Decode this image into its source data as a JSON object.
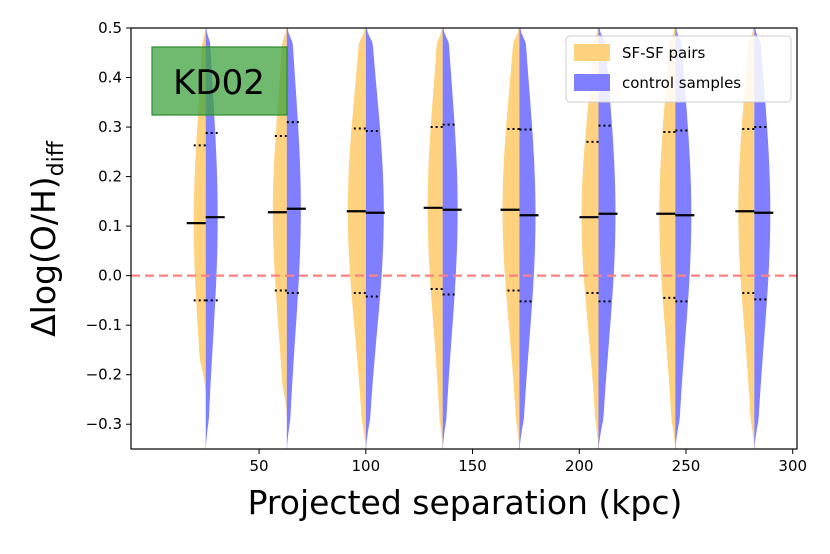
{
  "chart_data": {
    "type": "violin",
    "xlabel": "Projected separation (kpc)",
    "ylabel_main": "Δlog(O/H)",
    "ylabel_sub": "diff",
    "annotation": "KD02",
    "xlim": [
      -10,
      302
    ],
    "ylim": [
      -0.35,
      0.5
    ],
    "xticks": [
      50,
      100,
      150,
      200,
      250,
      300
    ],
    "yticks": [
      -0.3,
      -0.2,
      -0.1,
      0.0,
      0.1,
      0.2,
      0.3,
      0.4,
      0.5
    ],
    "xtick_labels": [
      "50",
      "100",
      "150",
      "200",
      "250",
      "300"
    ],
    "ytick_labels": [
      "−0.3",
      "−0.2",
      "−0.1",
      "0.0",
      "0.1",
      "0.2",
      "0.3",
      "0.4",
      "0.5"
    ],
    "reference_line": {
      "y": 0.0,
      "color": "#ff8080",
      "style": "dashed"
    },
    "series": [
      {
        "name": "SF-SF pairs",
        "color": "#ffd27f",
        "side": "left"
      },
      {
        "name": "control samples",
        "color": "#7f7fff",
        "side": "right"
      }
    ],
    "legend_position": "top-right",
    "groups": [
      {
        "x": 25,
        "sfsf": {
          "median": 0.106,
          "q_low": -0.05,
          "q_high": 0.263,
          "ymin": -0.23,
          "ymax": 0.5,
          "width": 12
        },
        "control": {
          "median": 0.118,
          "q_low": -0.05,
          "q_high": 0.288,
          "ymin": -0.35,
          "ymax": 0.5,
          "width": 12
        }
      },
      {
        "x": 63,
        "sfsf": {
          "median": 0.128,
          "q_low": -0.03,
          "q_high": 0.282,
          "ymin": -0.28,
          "ymax": 0.5,
          "width": 14
        },
        "control": {
          "median": 0.135,
          "q_low": -0.035,
          "q_high": 0.31,
          "ymin": -0.35,
          "ymax": 0.5,
          "width": 14
        }
      },
      {
        "x": 100,
        "sfsf": {
          "median": 0.13,
          "q_low": -0.035,
          "q_high": 0.297,
          "ymin": -0.35,
          "ymax": 0.5,
          "width": 18
        },
        "control": {
          "median": 0.127,
          "q_low": -0.042,
          "q_high": 0.292,
          "ymin": -0.35,
          "ymax": 0.5,
          "width": 18
        }
      },
      {
        "x": 136,
        "sfsf": {
          "median": 0.137,
          "q_low": -0.027,
          "q_high": 0.3,
          "ymin": -0.35,
          "ymax": 0.5,
          "width": 15
        },
        "control": {
          "median": 0.133,
          "q_low": -0.038,
          "q_high": 0.305,
          "ymin": -0.35,
          "ymax": 0.5,
          "width": 15
        }
      },
      {
        "x": 172,
        "sfsf": {
          "median": 0.133,
          "q_low": -0.03,
          "q_high": 0.296,
          "ymin": -0.35,
          "ymax": 0.5,
          "width": 17
        },
        "control": {
          "median": 0.122,
          "q_low": -0.052,
          "q_high": 0.295,
          "ymin": -0.35,
          "ymax": 0.5,
          "width": 16
        }
      },
      {
        "x": 209,
        "sfsf": {
          "median": 0.118,
          "q_low": -0.035,
          "q_high": 0.27,
          "ymin": -0.35,
          "ymax": 0.5,
          "width": 17
        },
        "control": {
          "median": 0.125,
          "q_low": -0.052,
          "q_high": 0.303,
          "ymin": -0.35,
          "ymax": 0.5,
          "width": 17
        }
      },
      {
        "x": 245,
        "sfsf": {
          "median": 0.125,
          "q_low": -0.045,
          "q_high": 0.29,
          "ymin": -0.35,
          "ymax": 0.5,
          "width": 16
        },
        "control": {
          "median": 0.122,
          "q_low": -0.052,
          "q_high": 0.293,
          "ymin": -0.35,
          "ymax": 0.5,
          "width": 16
        }
      },
      {
        "x": 282,
        "sfsf": {
          "median": 0.13,
          "q_low": -0.035,
          "q_high": 0.296,
          "ymin": -0.35,
          "ymax": 0.5,
          "width": 16
        },
        "control": {
          "median": 0.127,
          "q_low": -0.048,
          "q_high": 0.3,
          "ymin": -0.35,
          "ymax": 0.5,
          "width": 16
        }
      }
    ]
  }
}
